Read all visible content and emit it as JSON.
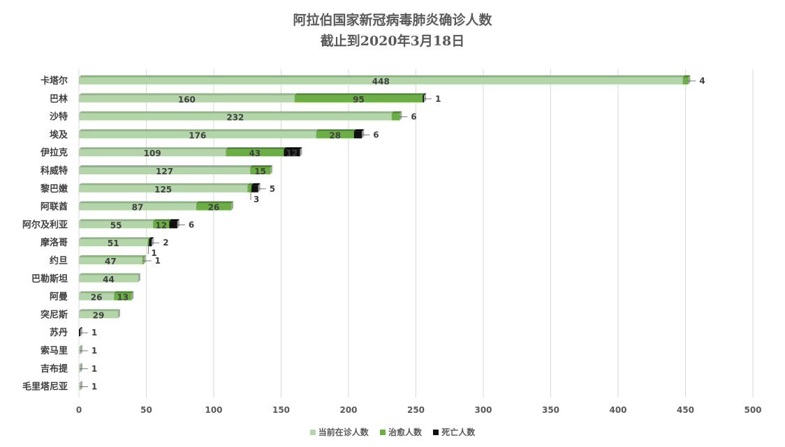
{
  "title": "阿拉伯国家新冠病毒肺炎确诊人数",
  "subtitle": "截止到2020年3月18日",
  "colors": {
    "active": "#b4d4a9",
    "recovered": "#6aae45",
    "death": "#111111",
    "grid": "#d9d9d9",
    "axis_text": "#595959",
    "label_text": "#404040"
  },
  "chart_data": {
    "type": "bar",
    "orientation": "horizontal",
    "stacked": true,
    "title": "阿拉伯国家新冠病毒肺炎确诊人数",
    "subtitle": "截止到2020年3月18日",
    "categories": [
      "卡塔尔",
      "巴林",
      "沙特",
      "埃及",
      "伊拉克",
      "科威特",
      "黎巴嫩",
      "阿联酋",
      "阿尔及利亚",
      "摩洛哥",
      "约旦",
      "巴勒斯坦",
      "阿曼",
      "突尼斯",
      "苏丹",
      "索马里",
      "吉布提",
      "毛里塔尼亚"
    ],
    "series": [
      {
        "name": "当前在诊人数",
        "values": [
          448,
          160,
          232,
          176,
          109,
          127,
          125,
          87,
          55,
          51,
          47,
          44,
          26,
          29,
          0,
          1,
          1,
          1
        ]
      },
      {
        "name": "治愈人数",
        "values": [
          4,
          95,
          6,
          28,
          43,
          15,
          3,
          26,
          12,
          1,
          1,
          0,
          13,
          0,
          0,
          0,
          0,
          0
        ]
      },
      {
        "name": "死亡人数",
        "values": [
          0,
          1,
          0,
          6,
          12,
          0,
          5,
          0,
          6,
          2,
          0,
          0,
          0,
          0,
          1,
          0,
          0,
          0
        ]
      }
    ],
    "xlim": [
      0,
      500
    ],
    "xticks": [
      0,
      50,
      100,
      150,
      200,
      250,
      300,
      350,
      400,
      450,
      500
    ],
    "grid": true,
    "legend_position": "bottom"
  }
}
